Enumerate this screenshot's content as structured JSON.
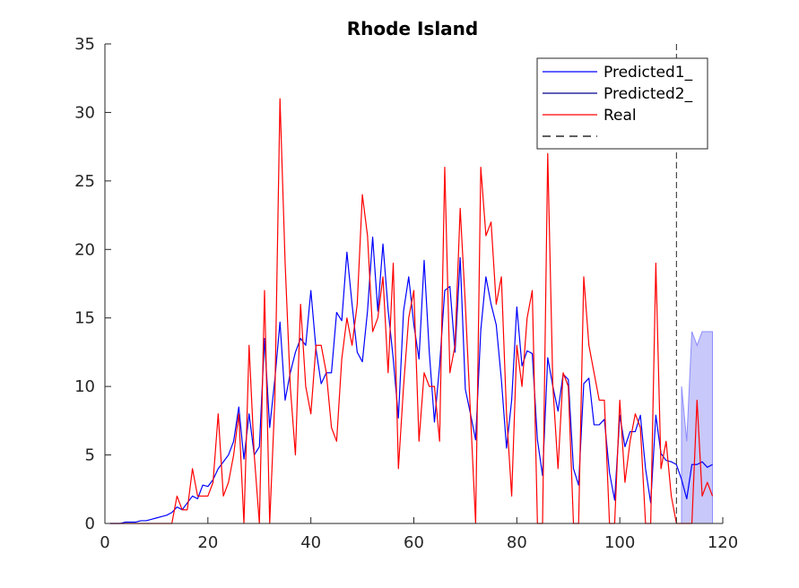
{
  "chart_data": {
    "type": "line",
    "title": "Rhode Island",
    "xlabel": "",
    "ylabel": "",
    "xlim": [
      0,
      120
    ],
    "ylim": [
      0,
      35
    ],
    "xticks": [
      0,
      20,
      40,
      60,
      80,
      100,
      120
    ],
    "yticks": [
      0,
      5,
      10,
      15,
      20,
      25,
      30,
      35
    ],
    "grid": false,
    "legend_position": "top-right",
    "vline_x": 111,
    "series": [
      {
        "name": "Predicted1_",
        "color": "#0000ff",
        "x": [
          1,
          2,
          3,
          4,
          5,
          6,
          7,
          8,
          9,
          10,
          11,
          12,
          13,
          14,
          15,
          16,
          17,
          18,
          19,
          20,
          21,
          22,
          23,
          24,
          25,
          26,
          27,
          28,
          29,
          30,
          31,
          32,
          33,
          34,
          35,
          36,
          37,
          38,
          39,
          40,
          41,
          42,
          43,
          44,
          45,
          46,
          47,
          48,
          49,
          50,
          51,
          52,
          53,
          54,
          55,
          56,
          57,
          58,
          59,
          60,
          61,
          62,
          63,
          64,
          65,
          66,
          67,
          68,
          69,
          70,
          71,
          72,
          73,
          74,
          75,
          76,
          77,
          78,
          79,
          80,
          81,
          82,
          83,
          84,
          85,
          86,
          87,
          88,
          89,
          90,
          91,
          92,
          93,
          94,
          95,
          96,
          97,
          98,
          99,
          100,
          101,
          102,
          103,
          104,
          105,
          106,
          107,
          108,
          109,
          110,
          111,
          112,
          113,
          114,
          115,
          116,
          117,
          118
        ],
        "values": [
          0,
          0,
          0,
          0.1,
          0.1,
          0.1,
          0.2,
          0.2,
          0.3,
          0.4,
          0.5,
          0.6,
          0.8,
          1.2,
          1.0,
          1.5,
          2.0,
          1.8,
          2.8,
          2.7,
          3.2,
          4.0,
          4.5,
          5.0,
          6.0,
          8.5,
          4.7,
          8.0,
          5.0,
          5.6,
          13.5,
          7.0,
          10.5,
          14.7,
          9.0,
          11.0,
          12.5,
          13.5,
          13.0,
          17.0,
          12.7,
          10.2,
          11.0,
          11.0,
          15.4,
          14.8,
          19.8,
          16.0,
          12.5,
          11.8,
          15.5,
          20.9,
          15.5,
          20.4,
          15.6,
          12.0,
          7.7,
          15.5,
          18.0,
          14.5,
          12.0,
          19.2,
          12.5,
          7.4,
          11.5,
          17.0,
          17.3,
          12.5,
          19.4,
          9.8,
          8.0,
          6.1,
          14.1,
          18.0,
          16.0,
          14.5,
          10.5,
          5.5,
          9.0,
          15.8,
          11.5,
          12.6,
          12.4,
          6.1,
          3.5,
          12.1,
          10.0,
          8.2,
          10.9,
          10.5,
          4.0,
          2.8,
          10.2,
          10.6,
          7.2,
          7.2,
          7.6,
          3.7,
          1.7,
          7.9,
          5.6,
          6.7,
          6.7,
          7.9,
          4.0,
          1.5,
          7.9,
          5.1,
          4.6,
          4.5,
          4.3,
          3.2,
          1.8,
          4.3,
          4.3,
          4.5,
          4.1,
          4.3
        ]
      },
      {
        "name": "Predicted2_",
        "color": "#00008b",
        "x": [],
        "values": []
      },
      {
        "name": "Real",
        "color": "#ff0000",
        "x": [
          1,
          2,
          3,
          4,
          5,
          6,
          7,
          8,
          9,
          10,
          11,
          12,
          13,
          14,
          15,
          16,
          17,
          18,
          19,
          20,
          21,
          22,
          23,
          24,
          25,
          26,
          27,
          28,
          29,
          30,
          31,
          32,
          33,
          34,
          35,
          36,
          37,
          38,
          39,
          40,
          41,
          42,
          43,
          44,
          45,
          46,
          47,
          48,
          49,
          50,
          51,
          52,
          53,
          54,
          55,
          56,
          57,
          58,
          59,
          60,
          61,
          62,
          63,
          64,
          65,
          66,
          67,
          68,
          69,
          70,
          71,
          72,
          73,
          74,
          75,
          76,
          77,
          78,
          79,
          80,
          81,
          82,
          83,
          84,
          85,
          86,
          87,
          88,
          89,
          90,
          91,
          92,
          93,
          94,
          95,
          96,
          97,
          98,
          99,
          100,
          101,
          102,
          103,
          104,
          105,
          106,
          107,
          108,
          109,
          110,
          111,
          112,
          113,
          114,
          115,
          116,
          117,
          118
        ],
        "values": [
          0,
          0,
          0,
          0,
          0,
          0,
          0,
          0,
          0,
          0,
          0,
          0,
          0,
          2,
          1,
          1,
          4,
          2,
          2,
          2,
          3,
          8,
          2,
          3,
          5,
          8,
          0,
          13,
          5,
          0,
          17,
          0,
          9,
          31,
          19,
          10,
          5,
          16,
          10,
          8,
          13,
          13,
          11,
          7,
          6,
          12,
          15,
          13,
          16,
          24,
          21,
          14,
          15,
          18,
          11,
          19,
          4,
          10,
          15,
          17,
          6,
          11,
          10,
          10,
          6,
          26,
          11,
          13,
          23,
          16,
          8,
          0,
          26,
          21,
          22,
          16,
          18,
          8,
          2,
          13,
          10,
          15,
          17,
          0,
          0,
          27,
          10,
          4,
          11,
          10,
          0,
          0,
          18,
          13,
          11,
          9,
          9,
          0,
          0,
          9,
          3,
          6,
          8,
          7,
          0,
          0,
          19,
          4,
          6,
          2,
          0,
          0,
          0,
          0,
          9,
          2,
          3,
          2
        ]
      },
      {
        "name": "",
        "color": "#000000",
        "dash": true,
        "x": [],
        "values": []
      }
    ],
    "band": {
      "color": "#0000ff",
      "x": [
        112,
        113,
        114,
        115,
        116,
        117,
        118
      ],
      "upper": [
        10,
        6,
        14,
        13,
        14,
        14,
        14
      ],
      "lower": [
        0,
        0,
        0,
        0,
        0,
        0,
        0
      ]
    }
  }
}
